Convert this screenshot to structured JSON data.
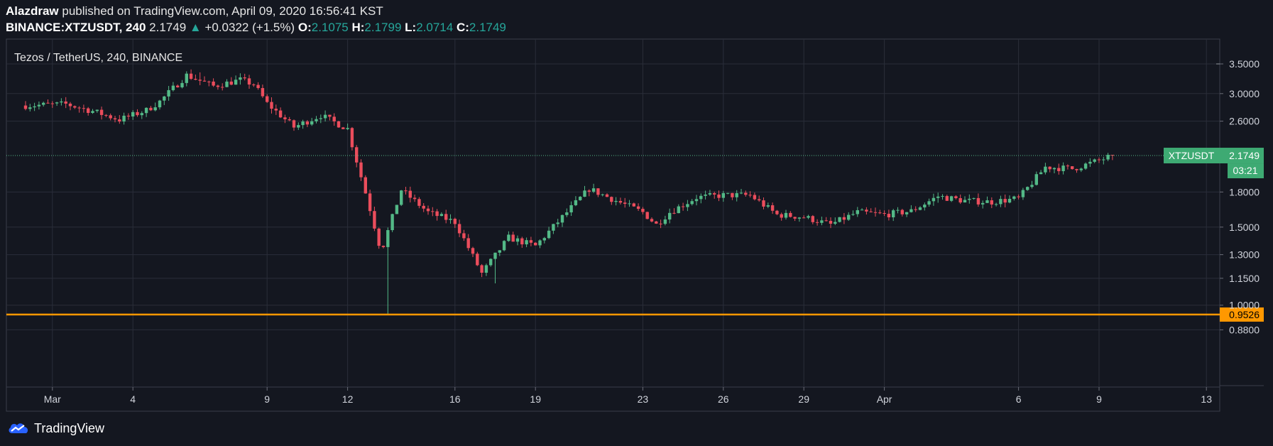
{
  "header": {
    "author": "Alazdraw",
    "published_text": "published on TradingView.com, April 09, 2020 16:56:41 KST",
    "symbol_interval": "BINANCE:XTZUSDT, 240",
    "last": "2.1749",
    "change_arrow": "▲",
    "change": "+0.0322 (+1.5%)",
    "o_label": "O:",
    "o_value": "2.1075",
    "h_label": "H:",
    "h_value": "2.1799",
    "l_label": "L:",
    "l_value": "2.0714",
    "c_label": "C:",
    "c_value": "2.1749"
  },
  "footer": {
    "brand": "TradingView"
  },
  "colors": {
    "background": "#141720",
    "up": "#53b987",
    "down": "#eb4d5c",
    "grid": "#2a2e39",
    "support": "#ff9800",
    "label_green": "#3eaa73"
  },
  "chart_data": {
    "type": "candlestick",
    "title": "Tezos / TetherUS, 240, BINANCE",
    "y_scale": "log",
    "y_ticks": [
      3.5,
      3.0,
      2.6,
      1.8,
      1.5,
      1.3,
      1.15,
      1.0,
      0.88
    ],
    "y_tick_labels": [
      "3.5000",
      "3.0000",
      "2.6000",
      "1.8000",
      "1.5000",
      "1.3000",
      "1.1500",
      "1.0000",
      "0.8800"
    ],
    "x_range": [
      "2020-02-29",
      "2020-04-13"
    ],
    "x_ticks": [
      {
        "date": "2020-03-01",
        "label": "Mar"
      },
      {
        "date": "2020-03-04",
        "label": "4"
      },
      {
        "date": "2020-03-09",
        "label": "9"
      },
      {
        "date": "2020-03-12",
        "label": "12"
      },
      {
        "date": "2020-03-16",
        "label": "16"
      },
      {
        "date": "2020-03-19",
        "label": "19"
      },
      {
        "date": "2020-03-23",
        "label": "23"
      },
      {
        "date": "2020-03-26",
        "label": "26"
      },
      {
        "date": "2020-03-29",
        "label": "29"
      },
      {
        "date": "2020-04-01",
        "label": "Apr"
      },
      {
        "date": "2020-04-06",
        "label": "6"
      },
      {
        "date": "2020-04-09",
        "label": "9"
      },
      {
        "date": "2020-04-13",
        "label": "13"
      }
    ],
    "grid": true,
    "last_price": {
      "symbol": "XTZUSDT",
      "value": "2.1749",
      "countdown": "03:21"
    },
    "horizontal_line": {
      "value": 0.9526,
      "label": "0.9526"
    },
    "close_path": [
      [
        "2020-02-29 00:00",
        2.82
      ],
      [
        "2020-03-01 12:00",
        2.84
      ],
      [
        "2020-03-02 12:00",
        2.74
      ],
      [
        "2020-03-03 12:00",
        2.62
      ],
      [
        "2020-03-04 12:00",
        2.75
      ],
      [
        "2020-03-05 00:00",
        2.88
      ],
      [
        "2020-03-06 00:00",
        3.3
      ],
      [
        "2020-03-07 00:00",
        3.12
      ],
      [
        "2020-03-08 00:00",
        3.22
      ],
      [
        "2020-03-08 12:00",
        3.15
      ],
      [
        "2020-03-09 00:00",
        2.85
      ],
      [
        "2020-03-10 00:00",
        2.52
      ],
      [
        "2020-03-11 00:00",
        2.68
      ],
      [
        "2020-03-12 00:00",
        2.5
      ],
      [
        "2020-03-12 18:00",
        1.72
      ],
      [
        "2020-03-13 06:00",
        1.32
      ],
      [
        "2020-03-14 00:00",
        1.82
      ],
      [
        "2020-03-15 00:00",
        1.62
      ],
      [
        "2020-03-16 00:00",
        1.54
      ],
      [
        "2020-03-17 00:00",
        1.18
      ],
      [
        "2020-03-18 00:00",
        1.42
      ],
      [
        "2020-03-19 00:00",
        1.36
      ],
      [
        "2020-03-20 00:00",
        1.58
      ],
      [
        "2020-03-21 00:00",
        1.83
      ],
      [
        "2020-03-22 00:00",
        1.72
      ],
      [
        "2020-03-23 00:00",
        1.62
      ],
      [
        "2020-03-23 12:00",
        1.52
      ],
      [
        "2020-03-24 00:00",
        1.62
      ],
      [
        "2020-03-25 00:00",
        1.75
      ],
      [
        "2020-03-26 00:00",
        1.77
      ],
      [
        "2020-03-27 00:00",
        1.77
      ],
      [
        "2020-03-28 00:00",
        1.6
      ],
      [
        "2020-03-29 00:00",
        1.58
      ],
      [
        "2020-03-30 00:00",
        1.52
      ],
      [
        "2020-03-31 00:00",
        1.62
      ],
      [
        "2020-04-01 00:00",
        1.6
      ],
      [
        "2020-04-02 00:00",
        1.63
      ],
      [
        "2020-04-03 00:00",
        1.76
      ],
      [
        "2020-04-04 00:00",
        1.72
      ],
      [
        "2020-04-05 00:00",
        1.71
      ],
      [
        "2020-04-06 00:00",
        1.74
      ],
      [
        "2020-04-07 00:00",
        2.05
      ],
      [
        "2020-04-08 00:00",
        2.03
      ],
      [
        "2020-04-09 00:00",
        2.12
      ],
      [
        "2020-04-09 12:00",
        2.1749
      ]
    ],
    "annotated_extremes": [
      {
        "date": "2020-03-06",
        "high": 3.35
      },
      {
        "date": "2020-03-13",
        "low": 0.95
      },
      {
        "date": "2020-03-17",
        "low": 1.12
      },
      {
        "date": "2020-04-09",
        "high": 2.18
      }
    ]
  }
}
